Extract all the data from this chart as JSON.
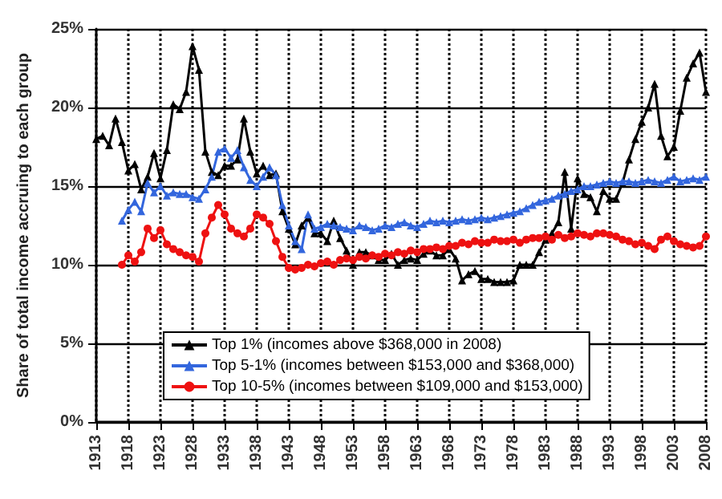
{
  "chart_data": {
    "type": "line",
    "ylabel": "Share of total income accruing to each group",
    "x": [
      1913,
      1914,
      1915,
      1916,
      1917,
      1918,
      1919,
      1920,
      1921,
      1922,
      1923,
      1924,
      1925,
      1926,
      1927,
      1928,
      1929,
      1930,
      1931,
      1932,
      1933,
      1934,
      1935,
      1936,
      1937,
      1938,
      1939,
      1940,
      1941,
      1942,
      1943,
      1944,
      1945,
      1946,
      1947,
      1948,
      1949,
      1950,
      1951,
      1952,
      1953,
      1954,
      1955,
      1956,
      1957,
      1958,
      1959,
      1960,
      1961,
      1962,
      1963,
      1964,
      1965,
      1966,
      1967,
      1968,
      1969,
      1970,
      1971,
      1972,
      1973,
      1974,
      1975,
      1976,
      1977,
      1978,
      1979,
      1980,
      1981,
      1982,
      1983,
      1984,
      1985,
      1986,
      1987,
      1988,
      1989,
      1990,
      1991,
      1992,
      1993,
      1994,
      1995,
      1996,
      1997,
      1998,
      1999,
      2000,
      2001,
      2002,
      2003,
      2004,
      2005,
      2006,
      2007,
      2008
    ],
    "series": [
      {
        "name": "Top 1% (incomes above $368,000 in 2008)",
        "color": "#000000",
        "marker": "triangle",
        "values": [
          18.0,
          18.2,
          17.6,
          19.3,
          17.8,
          16.0,
          16.4,
          14.8,
          15.6,
          17.1,
          15.5,
          17.3,
          20.2,
          19.9,
          21.0,
          23.9,
          22.4,
          17.2,
          15.9,
          15.7,
          16.3,
          16.3,
          16.7,
          19.3,
          17.2,
          15.8,
          16.3,
          15.7,
          15.8,
          13.4,
          12.3,
          11.3,
          12.5,
          13.0,
          12.0,
          12.0,
          11.5,
          12.8,
          11.7,
          10.9,
          10.0,
          10.8,
          10.8,
          10.6,
          10.3,
          10.3,
          10.7,
          10.0,
          10.3,
          10.4,
          10.3,
          10.7,
          10.9,
          10.6,
          10.6,
          11.0,
          10.4,
          9.0,
          9.4,
          9.6,
          9.1,
          9.1,
          8.9,
          8.9,
          8.9,
          9.0,
          10.0,
          10.0,
          10.0,
          10.8,
          11.6,
          12.0,
          12.7,
          15.9,
          12.3,
          15.5,
          14.5,
          14.3,
          13.4,
          14.7,
          14.2,
          14.2,
          15.2,
          16.7,
          18.0,
          19.1,
          20.0,
          21.5,
          18.2,
          16.9,
          17.5,
          19.8,
          21.9,
          22.8,
          23.5,
          21.0
        ]
      },
      {
        "name": "Top 5-1% (incomes between $153,000 and $368,000)",
        "color": "#3366dd",
        "marker": "triangle",
        "values": [
          null,
          null,
          null,
          null,
          12.8,
          13.5,
          14.0,
          13.4,
          15.2,
          14.6,
          15.0,
          14.4,
          14.6,
          14.5,
          14.5,
          14.3,
          14.2,
          14.8,
          15.6,
          17.2,
          17.4,
          16.8,
          17.3,
          16.2,
          15.4,
          15.0,
          15.6,
          16.2,
          15.7,
          13.8,
          12.5,
          11.5,
          11.0,
          13.2,
          12.3,
          12.4,
          12.6,
          12.5,
          12.4,
          12.3,
          12.2,
          12.5,
          12.4,
          12.2,
          12.3,
          12.5,
          12.4,
          12.6,
          12.7,
          12.5,
          12.4,
          12.6,
          12.8,
          12.7,
          12.8,
          12.7,
          12.8,
          12.9,
          12.8,
          12.9,
          13.0,
          12.9,
          13.0,
          13.1,
          13.2,
          13.3,
          13.4,
          13.6,
          13.8,
          14.0,
          14.1,
          14.2,
          14.4,
          14.5,
          14.7,
          14.8,
          15.0,
          15.0,
          15.1,
          15.2,
          15.3,
          15.2,
          15.3,
          15.3,
          15.2,
          15.3,
          15.4,
          15.3,
          15.2,
          15.4,
          15.6,
          15.3,
          15.4,
          15.5,
          15.4,
          15.6
        ]
      },
      {
        "name": "Top 10-5% (incomes between $109,000 and $153,000)",
        "color": "#ee1111",
        "marker": "circle",
        "values": [
          null,
          null,
          null,
          null,
          10.0,
          10.6,
          10.2,
          10.8,
          12.3,
          11.7,
          12.2,
          11.3,
          11.0,
          10.8,
          10.6,
          10.5,
          10.2,
          12.0,
          13.0,
          13.8,
          13.2,
          12.3,
          12.0,
          11.8,
          12.3,
          13.2,
          13.0,
          12.6,
          11.5,
          10.5,
          9.8,
          9.7,
          9.8,
          10.0,
          9.9,
          10.1,
          10.2,
          10.0,
          10.3,
          10.4,
          10.3,
          10.5,
          10.4,
          10.6,
          10.5,
          10.7,
          10.6,
          10.8,
          10.7,
          10.9,
          10.8,
          11.0,
          11.0,
          11.1,
          11.0,
          11.2,
          11.2,
          11.4,
          11.3,
          11.5,
          11.4,
          11.4,
          11.6,
          11.5,
          11.5,
          11.6,
          11.4,
          11.6,
          11.7,
          11.7,
          11.8,
          11.6,
          11.9,
          11.7,
          11.8,
          12.0,
          11.9,
          11.8,
          12.0,
          12.0,
          11.9,
          11.8,
          11.6,
          11.5,
          11.3,
          11.4,
          11.2,
          11.0,
          11.6,
          11.8,
          11.5,
          11.3,
          11.2,
          11.1,
          11.2,
          11.8
        ]
      }
    ],
    "xlim": [
      1913,
      2008
    ],
    "xticks": [
      1913,
      1918,
      1923,
      1928,
      1933,
      1938,
      1943,
      1948,
      1953,
      1958,
      1963,
      1968,
      1973,
      1978,
      1983,
      1988,
      1993,
      1998,
      2003,
      2008
    ],
    "ylim": [
      0,
      25
    ],
    "yticks": [
      {
        "value": 0,
        "label": "0%"
      },
      {
        "value": 5,
        "label": "5%"
      },
      {
        "value": 10,
        "label": "10%"
      },
      {
        "value": 15,
        "label": "15%"
      },
      {
        "value": 20,
        "label": "20%"
      },
      {
        "value": 25,
        "label": "25%"
      }
    ],
    "grid": true,
    "legend": "bottom right",
    "line_style": "solid"
  }
}
